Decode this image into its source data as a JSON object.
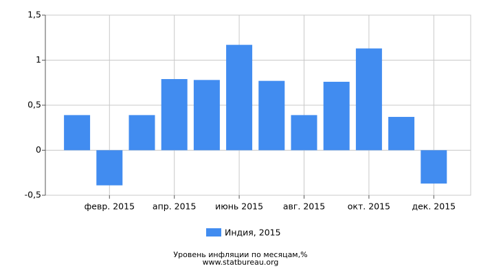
{
  "chart_data": {
    "type": "bar",
    "title": "Уровень инфляции по месяцам,%",
    "source": "www.statbureau.org",
    "categories": [
      null,
      "февр. 2015",
      null,
      "апр. 2015",
      null,
      "июнь 2015",
      null,
      "авг. 2015",
      null,
      "окт. 2015",
      null,
      "дек. 2015"
    ],
    "series": [
      {
        "name": "Индия, 2015",
        "color": "#418cf0",
        "values": [
          0.39,
          -0.39,
          0.39,
          0.79,
          0.78,
          1.17,
          0.77,
          0.39,
          0.76,
          1.13,
          0.37,
          -0.37
        ]
      }
    ],
    "ylim": [
      -0.5,
      1.5
    ],
    "yticks": [
      {
        "value": -0.5,
        "label": "-0,5"
      },
      0,
      {
        "value": 0.5,
        "label": "0,5"
      },
      1,
      {
        "value": 1.5,
        "label": "1,5"
      }
    ],
    "grid": true,
    "legend": "bottom"
  }
}
